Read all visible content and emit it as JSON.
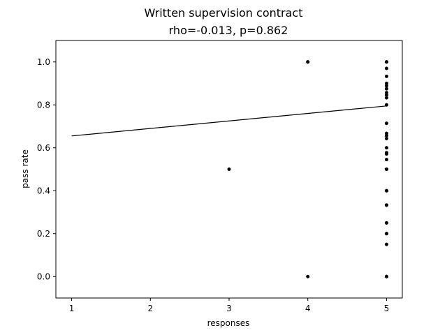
{
  "chart_data": {
    "type": "scatter",
    "title": "Written supervision contract",
    "subtitle": "rho=-0.013, p=0.862",
    "xlabel": "responses",
    "ylabel": "pass rate",
    "xlim": [
      0.8,
      5.2
    ],
    "ylim": [
      -0.1,
      1.1
    ],
    "xticks": [
      1,
      2,
      3,
      4,
      5
    ],
    "yticks": [
      0.0,
      0.2,
      0.4,
      0.6,
      0.8,
      1.0
    ],
    "xtick_labels": [
      "1",
      "2",
      "3",
      "4",
      "5"
    ],
    "ytick_labels": [
      "0.0",
      "0.2",
      "0.4",
      "0.6",
      "0.8",
      "1.0"
    ],
    "grid": false,
    "points": [
      {
        "x": 3,
        "y": 0.5
      },
      {
        "x": 4,
        "y": 1.0
      },
      {
        "x": 4,
        "y": 1.0
      },
      {
        "x": 4,
        "y": 0.0
      },
      {
        "x": 5,
        "y": 1.0
      },
      {
        "x": 5,
        "y": 1.0
      },
      {
        "x": 5,
        "y": 0.97
      },
      {
        "x": 5,
        "y": 0.933
      },
      {
        "x": 5,
        "y": 0.9
      },
      {
        "x": 5,
        "y": 0.889
      },
      {
        "x": 5,
        "y": 0.875
      },
      {
        "x": 5,
        "y": 0.857
      },
      {
        "x": 5,
        "y": 0.846
      },
      {
        "x": 5,
        "y": 0.833
      },
      {
        "x": 5,
        "y": 0.8
      },
      {
        "x": 5,
        "y": 0.714
      },
      {
        "x": 5,
        "y": 0.667
      },
      {
        "x": 5,
        "y": 0.657
      },
      {
        "x": 5,
        "y": 0.643
      },
      {
        "x": 5,
        "y": 0.6
      },
      {
        "x": 5,
        "y": 0.577
      },
      {
        "x": 5,
        "y": 0.571
      },
      {
        "x": 5,
        "y": 0.545
      },
      {
        "x": 5,
        "y": 0.5
      },
      {
        "x": 5,
        "y": 0.5
      },
      {
        "x": 5,
        "y": 0.4
      },
      {
        "x": 5,
        "y": 0.4
      },
      {
        "x": 5,
        "y": 0.333
      },
      {
        "x": 5,
        "y": 0.333
      },
      {
        "x": 5,
        "y": 0.25
      },
      {
        "x": 5,
        "y": 0.2
      },
      {
        "x": 5,
        "y": 0.2
      },
      {
        "x": 5,
        "y": 0.15
      },
      {
        "x": 5,
        "y": 0.0
      },
      {
        "x": 5,
        "y": 0.0
      }
    ],
    "fit_line": {
      "x": [
        1,
        5
      ],
      "y": [
        0.655,
        0.795
      ]
    },
    "colors": {
      "points": "#000000",
      "line": "#000000",
      "axes": "#000000"
    }
  }
}
